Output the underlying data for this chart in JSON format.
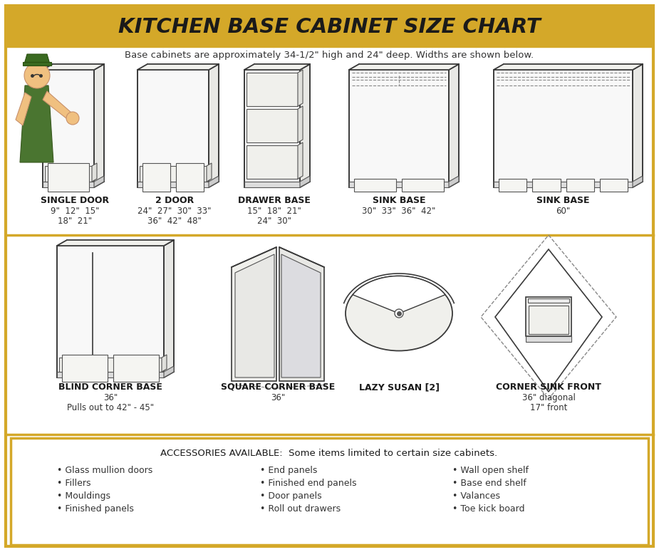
{
  "title": "KITCHEN BASE CABINET SIZE CHART",
  "subtitle": "Base cabinets are approximately 34-1/2\" high and 24\" deep. Widths are shown below.",
  "header_bg": "#D4A829",
  "border_color": "#D4A829",
  "bg_color": "#FFFFFF",
  "title_color": "#1a1a1a",
  "text_color": "#333333",
  "row1_cabinets": [
    {
      "name": "SINGLE DOOR",
      "sizes": "9\"  12\"  15\"\n18\"  21\""
    },
    {
      "name": "2 DOOR",
      "sizes": "24\"  27\"  30\"  33\"\n36\"  42\"  48\""
    },
    {
      "name": "DRAWER BASE",
      "sizes": "15\"  18\"  21\"\n24\"  30\""
    },
    {
      "name": "SINK BASE",
      "sizes": "30\"  33\"  36\"  42\""
    },
    {
      "name": "SINK BASE",
      "sizes": "60\""
    }
  ],
  "row2_cabinets": [
    {
      "name": "BLIND CORNER BASE",
      "sizes": "36\"\nPulls out to 42\" - 45\""
    },
    {
      "name": "SQUARE CORNER BASE",
      "sizes": "36\""
    },
    {
      "name": "LAZY SUSAN [2]",
      "sizes": ""
    },
    {
      "name": "CORNER SINK FRONT",
      "sizes": "36\" diagonal\n17\" front"
    }
  ],
  "accessories_header": "ACCESSORIES AVAILABLE:  Some items limited to certain size cabinets.",
  "accessories_col1": [
    "• Glass mullion doors",
    "• Fillers",
    "• Mouldings",
    "• Finished panels"
  ],
  "accessories_col2": [
    "• End panels",
    "• Finished end panels",
    "• Door panels",
    "• Roll out drawers"
  ],
  "accessories_col3": [
    "• Wall open shelf",
    "• Base end shelf",
    "• Valances",
    "• Toe kick board"
  ],
  "lc": "#3a3a3a",
  "fc": "#f8f8f5",
  "dc": "#888888"
}
